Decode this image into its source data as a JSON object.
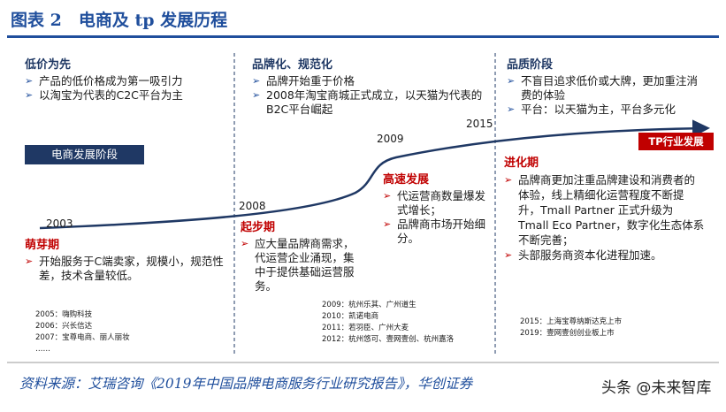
{
  "header": {
    "title": "图表 2　电商及 tp 发展历程"
  },
  "stage_label": "电商发展阶段",
  "tp_label": "TP行业发展",
  "years": [
    "2003",
    "2008",
    "2009",
    "2015"
  ],
  "stages": [
    {
      "heading": "低价为先",
      "bullets": [
        "产品的低价格成为第一吸引力",
        "以淘宝为代表的C2C平台为主"
      ]
    },
    {
      "heading": "品牌化、规范化",
      "bullets": [
        "品牌开始重于价格",
        "2008年淘宝商城正式成立，以天猫为代表的B2C平台崛起"
      ]
    },
    {
      "heading": "品质阶段",
      "bullets": [
        "不盲目追求低价或大牌，更加重注消费的体验",
        "平台：以天猫为主，平台多元化"
      ]
    }
  ],
  "phases": [
    {
      "heading": "萌芽期",
      "bullets": [
        "开始服务于C端卖家，规模小，规范性差，技术含量较低。"
      ]
    },
    {
      "heading": "起步期",
      "bullets": [
        "应大量品牌商需求，代运营企业涌现，集中于提供基础运营服务。"
      ]
    },
    {
      "heading": "高速发展",
      "bullets": [
        "代运营商数量爆发式增长；",
        "品牌商市场开始细分。"
      ]
    },
    {
      "heading": "进化期",
      "bullets": [
        "品牌商更加注重品牌建设和消费者的体验，线上精细化运营程度不断提升，Tmall Partner 正式升级为 Tmall Eco Partner，数字化生态体系不断完善；",
        "头部服务商资本化进程加速。"
      ]
    }
  ],
  "events": [
    [
      "2005：嗨购科技",
      "2006：兴长信达",
      "2007：宝尊电商、丽人丽妆",
      "……"
    ],
    [
      "2009：杭州乐其、广州道生",
      "2010：凯诺电商",
      "2011：若羽臣、广州大麦",
      "2012：杭州悠可、壹网壹创、杭州嘉洛"
    ],
    [
      "2015：上海宝尊纳斯达克上市",
      "2019：壹网壹创创业板上市"
    ]
  ],
  "source": "资料来源：艾瑞咨询《2019年中国品牌电商服务行业研究报告》，华创证券",
  "watermark": "头条 @未来智库"
}
